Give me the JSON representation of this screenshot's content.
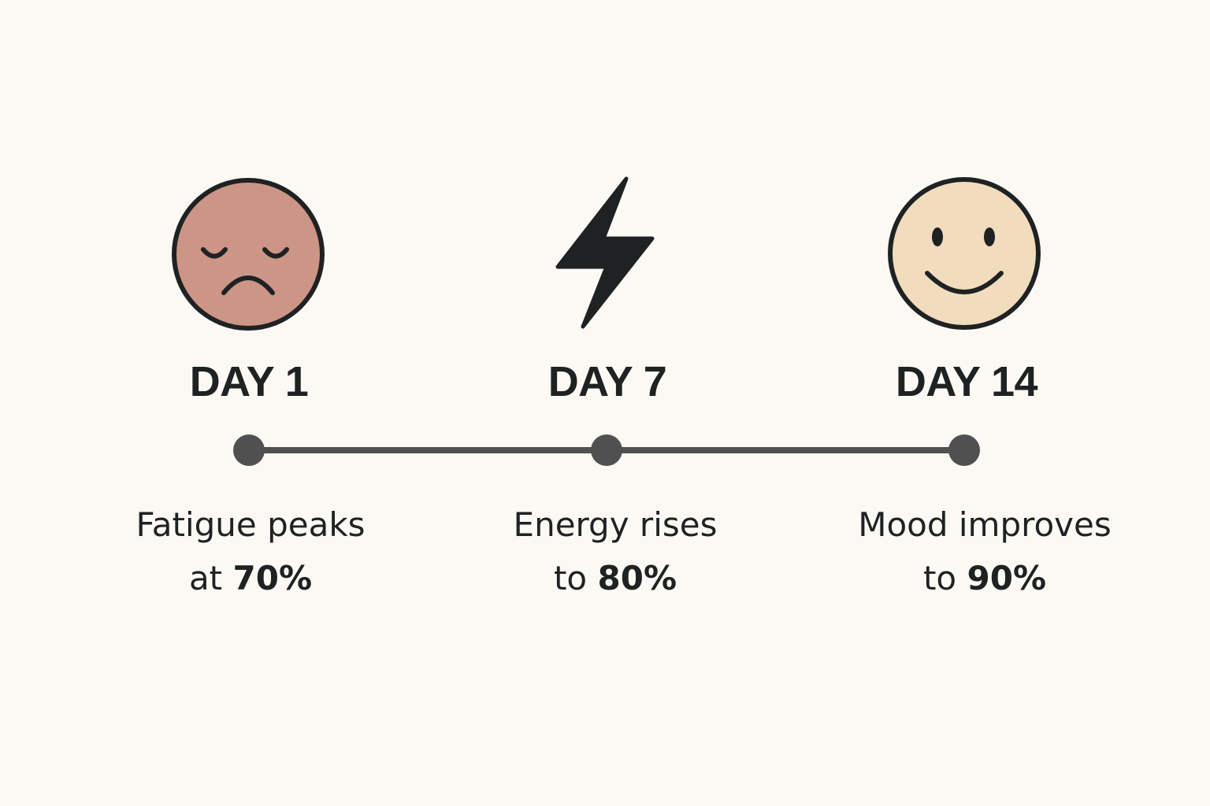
{
  "colors": {
    "background": "#fcf9f4",
    "ink": "#1f2223",
    "line": "#505050",
    "sad_face": "#cd9585",
    "happy_face": "#f2dcbe"
  },
  "milestones": [
    {
      "day": "DAY 1",
      "icon": "sad-face-icon",
      "caption_line1": "Fatigue peaks",
      "caption_prefix": "at",
      "value": "70%"
    },
    {
      "day": "DAY 7",
      "icon": "lightning-bolt-icon",
      "caption_line1": "Energy rises",
      "caption_prefix": "to",
      "value": "80%"
    },
    {
      "day": "DAY 14",
      "icon": "smiley-face-icon",
      "caption_line1": "Mood improves",
      "caption_prefix": "to",
      "value": "90%"
    }
  ]
}
